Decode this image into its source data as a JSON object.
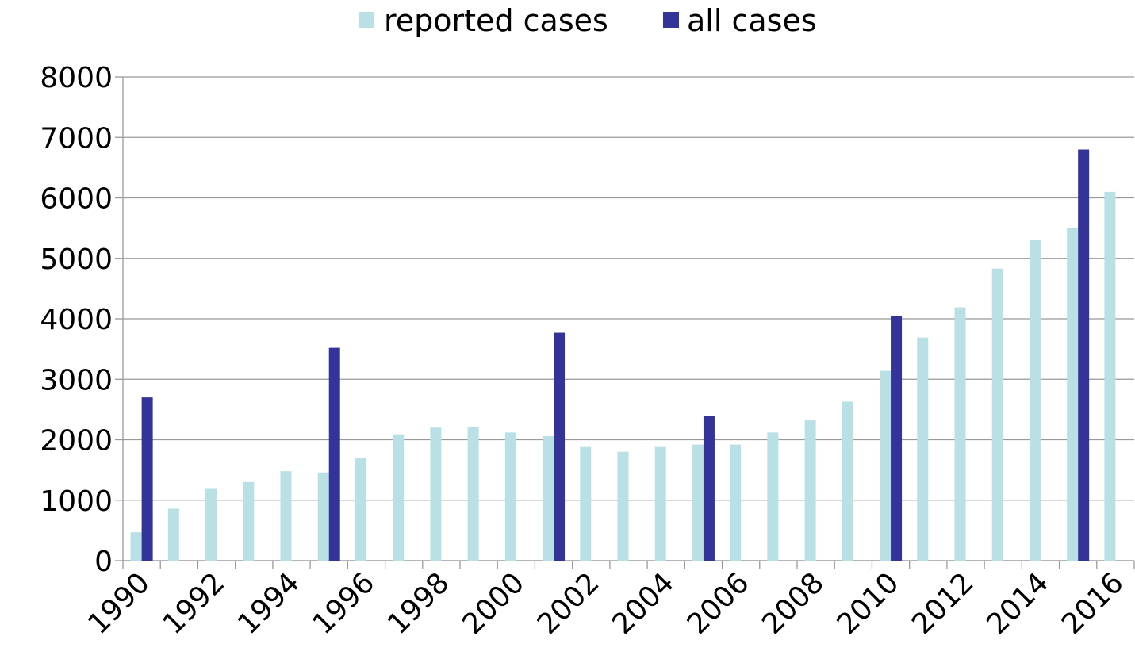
{
  "chart_data": {
    "type": "bar",
    "categories": [
      "1990",
      null,
      "1992",
      null,
      "1994",
      null,
      "1996",
      null,
      "1998",
      null,
      "2000",
      null,
      "2002",
      null,
      "2004",
      null,
      "2006",
      null,
      "2008",
      null,
      "2010",
      null,
      "2012",
      null,
      "2014",
      null,
      "2016"
    ],
    "series": [
      {
        "name": "reported cases",
        "color": "#b9e0e4",
        "values": [
          470,
          860,
          1200,
          1300,
          1480,
          1460,
          1700,
          2090,
          2200,
          2210,
          2120,
          2060,
          1880,
          1800,
          1880,
          1920,
          1920,
          2120,
          2320,
          2630,
          3140,
          3690,
          4190,
          4830,
          5300,
          5500,
          6100
        ]
      },
      {
        "name": "all cases",
        "color": "#333399",
        "values": [
          2700,
          null,
          null,
          null,
          null,
          3520,
          null,
          null,
          null,
          null,
          null,
          3770,
          null,
          null,
          null,
          2400,
          null,
          null,
          null,
          null,
          4040,
          null,
          null,
          null,
          null,
          6800,
          null
        ]
      }
    ],
    "ylim": [
      0,
      8000
    ],
    "yticks": [
      0,
      1000,
      2000,
      3000,
      4000,
      5000,
      6000,
      7000,
      8000
    ],
    "grid": true,
    "legend": "top"
  }
}
